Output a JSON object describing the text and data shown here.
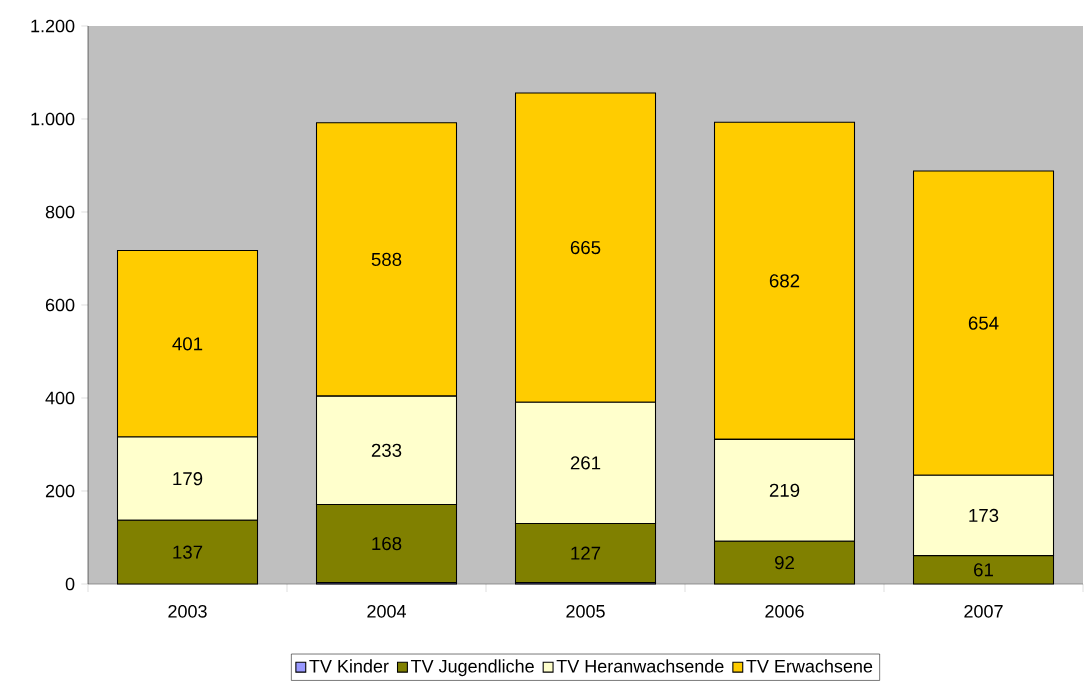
{
  "chart_data": {
    "type": "bar",
    "stacked": true,
    "categories": [
      "2003",
      "2004",
      "2005",
      "2006",
      "2007"
    ],
    "series": [
      {
        "name": "TV Kinder",
        "color": "#9999ff",
        "values": [
          0,
          3,
          3,
          0,
          0
        ]
      },
      {
        "name": "TV Jugendliche",
        "color": "#808000",
        "values": [
          137,
          168,
          127,
          92,
          61
        ],
        "value_labels": [
          "137",
          "168",
          "127",
          "92",
          "61"
        ]
      },
      {
        "name": "TV Heranwachsende",
        "color": "#ffffcc",
        "values": [
          179,
          233,
          261,
          219,
          173
        ],
        "value_labels": [
          "179",
          "233",
          "261",
          "219",
          "173"
        ]
      },
      {
        "name": "TV Erwachsene",
        "color": "#ffcc00",
        "values": [
          401,
          588,
          665,
          682,
          654
        ],
        "value_labels": [
          "401",
          "588",
          "665",
          "682",
          "654"
        ]
      }
    ],
    "ylim": [
      0,
      1200
    ],
    "yticks": [
      0,
      200,
      400,
      600,
      800,
      {
        "value": 1000,
        "label": "1.000"
      },
      {
        "value": 1200,
        "label": "1.200"
      }
    ],
    "grid": false,
    "legend": "bottom"
  }
}
